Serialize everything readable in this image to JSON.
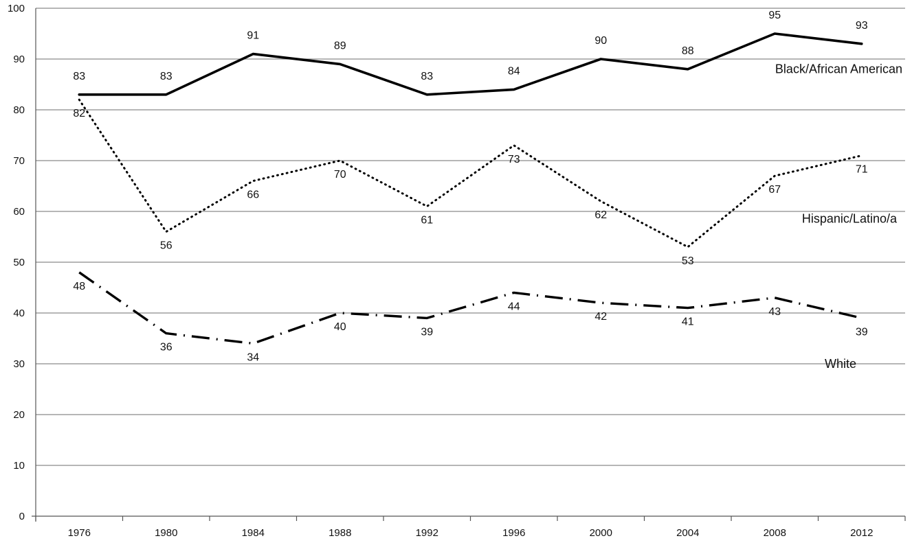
{
  "chart_data": {
    "type": "line",
    "title": "",
    "xlabel": "",
    "ylabel": "",
    "ylim": [
      0,
      100
    ],
    "yticks": [
      "0",
      "10",
      "20",
      "30",
      "40",
      "50",
      "60",
      "70",
      "80",
      "90",
      "100"
    ],
    "categories": [
      "1976",
      "1980",
      "1984",
      "1988",
      "1992",
      "1996",
      "2000",
      "2004",
      "2008",
      "2012"
    ],
    "grid": "horizontal",
    "legend": "inline",
    "series": [
      {
        "name": "Black/African American",
        "style": "solid",
        "color": "#000000",
        "values": [
          83,
          83,
          91,
          89,
          83,
          84,
          90,
          88,
          95,
          93
        ]
      },
      {
        "name": "Hispanic/Latino/a",
        "style": "dotted",
        "color": "#000000",
        "values": [
          82,
          56,
          66,
          70,
          61,
          73,
          62,
          53,
          67,
          71
        ]
      },
      {
        "name": "White",
        "style": "dash-dot",
        "color": "#000000",
        "values": [
          48,
          36,
          34,
          40,
          39,
          44,
          42,
          41,
          43,
          39
        ]
      }
    ]
  }
}
